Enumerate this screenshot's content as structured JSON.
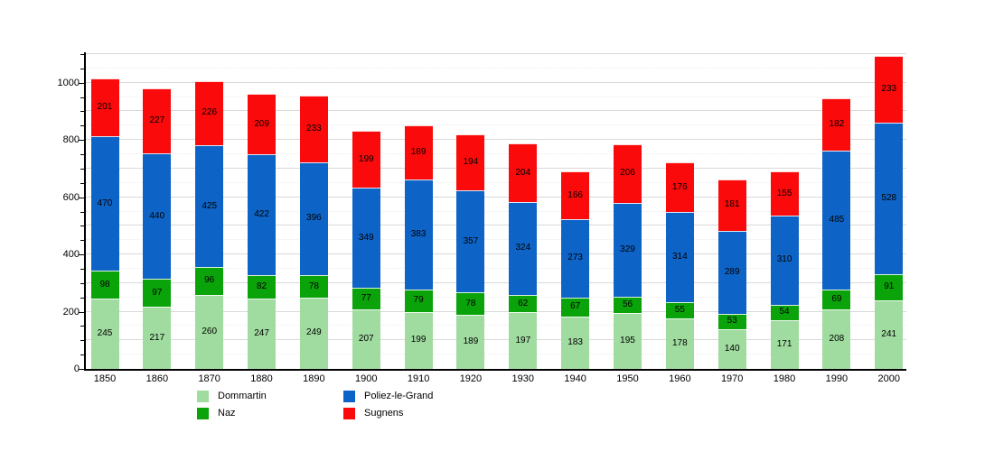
{
  "chart_data": {
    "type": "bar",
    "stacked": true,
    "title": "",
    "xlabel": "",
    "ylabel": "",
    "categories": [
      "1850",
      "1860",
      "1870",
      "1880",
      "1890",
      "1900",
      "1910",
      "1920",
      "1930",
      "1940",
      "1950",
      "1960",
      "1970",
      "1980",
      "1990",
      "2000"
    ],
    "series": [
      {
        "name": "Dommartin",
        "color": "#a0dba0",
        "values": [
          245,
          217,
          260,
          247,
          249,
          207,
          199,
          189,
          197,
          183,
          195,
          178,
          140,
          171,
          208,
          241
        ]
      },
      {
        "name": "Naz",
        "color": "#0aa30a",
        "values": [
          98,
          97,
          96,
          82,
          78,
          77,
          79,
          78,
          62,
          67,
          56,
          55,
          53,
          54,
          69,
          91
        ]
      },
      {
        "name": "Poliez-le-Grand",
        "color": "#0d63c6",
        "values": [
          470,
          440,
          425,
          422,
          396,
          349,
          383,
          357,
          324,
          273,
          329,
          314,
          289,
          310,
          485,
          528
        ]
      },
      {
        "name": "Sugnens",
        "color": "#fa0a0a",
        "values": [
          201,
          227,
          226,
          209,
          233,
          199,
          189,
          194,
          204,
          166,
          206,
          176,
          181,
          155,
          182,
          233
        ]
      }
    ],
    "ylim": [
      0,
      1100
    ],
    "yticks": [
      0,
      200,
      400,
      600,
      800,
      1000
    ],
    "grid": {
      "on": true,
      "minor_step": 50
    },
    "bar_value_labels": true,
    "legend_position": "bottom",
    "axis_color": "#000000",
    "gridline_major_color": "#d9d9d9",
    "gridline_minor_color": "#ececec",
    "background_color": "#ffffff"
  }
}
